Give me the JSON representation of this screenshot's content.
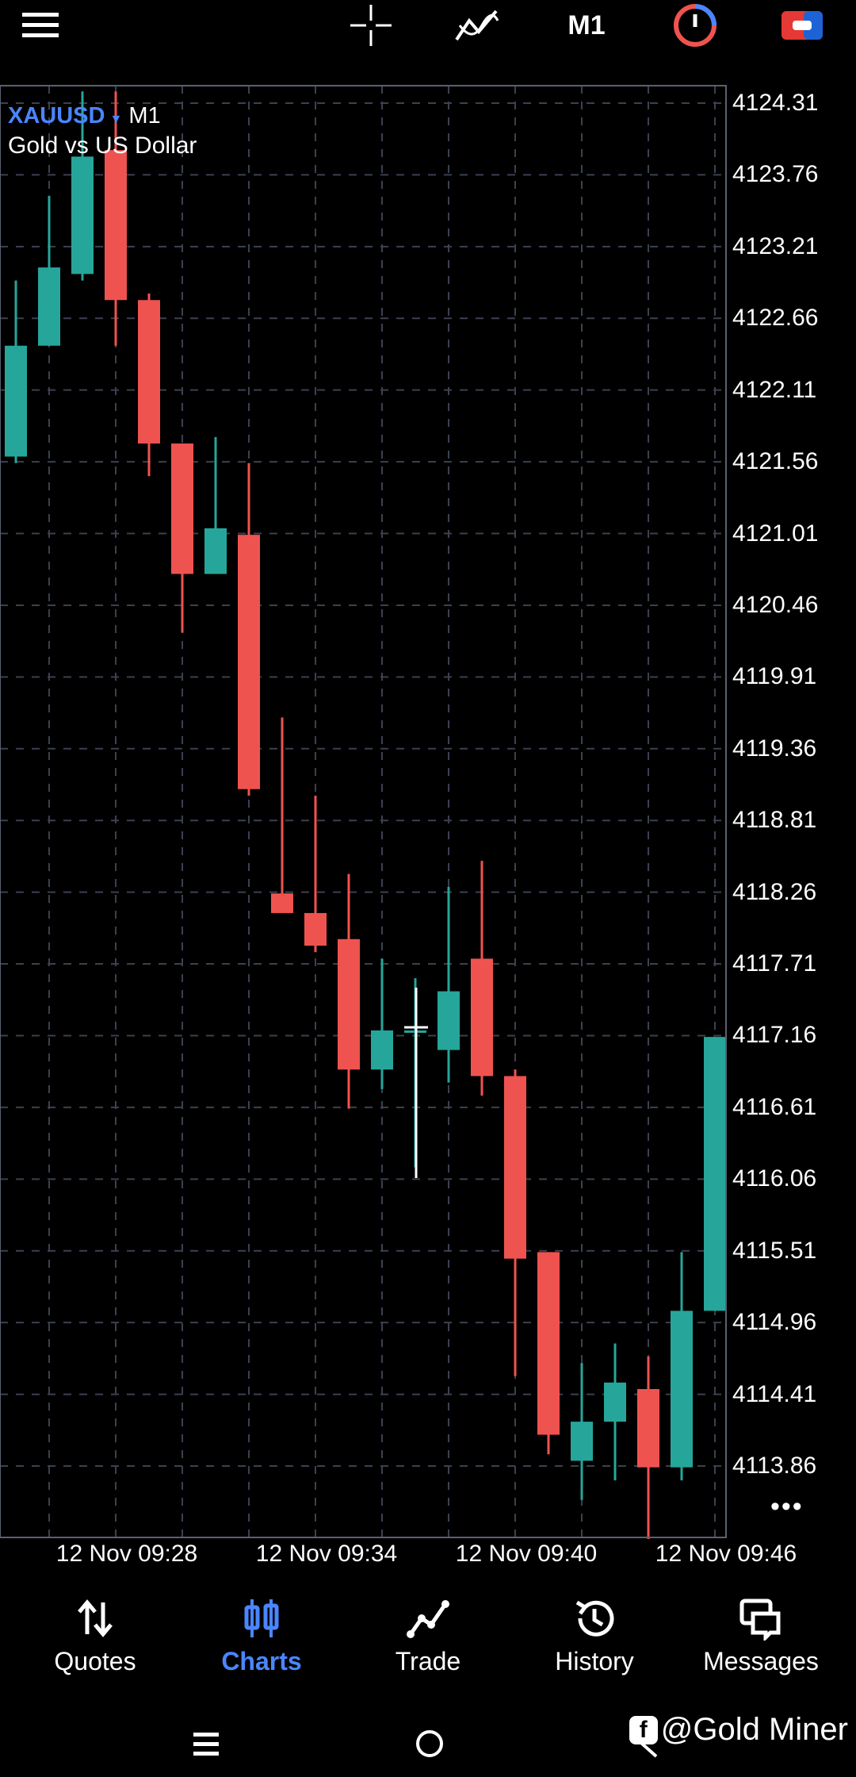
{
  "topbar": {
    "timeframe": "M1",
    "icons": [
      "menu-icon",
      "crosshair-icon",
      "indicators-icon",
      "clock-icon",
      "trade-toggle-icon"
    ]
  },
  "symbol": {
    "name": "XAUUSD",
    "timeframe": "M1",
    "description": "Gold vs US Dollar"
  },
  "colors": {
    "bull": "#26a69a",
    "bear": "#ef5350",
    "grid": "#3b4150",
    "accent": "#4a86ff"
  },
  "chart_data": {
    "type": "candlestick",
    "price_ticks": [
      "4124.31",
      "4123.76",
      "4123.21",
      "4122.66",
      "4122.11",
      "4121.56",
      "4121.01",
      "4120.46",
      "4119.91",
      "4119.36",
      "4118.81",
      "4118.26",
      "4117.71",
      "4117.16",
      "4116.61",
      "4116.06",
      "4115.51",
      "4114.96",
      "4114.41",
      "4113.86"
    ],
    "time_labels": [
      "12 Nov 09:28",
      "12 Nov 09:34",
      "12 Nov 09:40",
      "12 Nov 09:46"
    ],
    "ylim": [
      4113.86,
      4124.31
    ],
    "candles": [
      {
        "o": 4121.6,
        "h": 4122.95,
        "l": 4121.55,
        "c": 4122.45
      },
      {
        "o": 4122.45,
        "h": 4123.6,
        "l": 4122.45,
        "c": 4123.05
      },
      {
        "o": 4123.0,
        "h": 4124.4,
        "l": 4122.95,
        "c": 4123.9
      },
      {
        "o": 4123.95,
        "h": 4124.4,
        "l": 4122.45,
        "c": 4122.8
      },
      {
        "o": 4122.8,
        "h": 4122.85,
        "l": 4121.45,
        "c": 4121.7
      },
      {
        "o": 4121.7,
        "h": 4121.7,
        "l": 4120.25,
        "c": 4120.7
      },
      {
        "o": 4120.7,
        "h": 4121.75,
        "l": 4120.7,
        "c": 4121.05
      },
      {
        "o": 4121.0,
        "h": 4121.55,
        "l": 4119.0,
        "c": 4119.05
      },
      {
        "o": 4118.25,
        "h": 4119.6,
        "l": 4118.1,
        "c": 4118.1
      },
      {
        "o": 4118.1,
        "h": 4119.0,
        "l": 4117.8,
        "c": 4117.85
      },
      {
        "o": 4117.9,
        "h": 4118.4,
        "l": 4116.6,
        "c": 4116.9
      },
      {
        "o": 4116.9,
        "h": 4117.75,
        "l": 4116.75,
        "c": 4117.2
      },
      {
        "o": 4117.2,
        "h": 4117.6,
        "l": 4116.15,
        "c": 4117.2
      },
      {
        "o": 4117.05,
        "h": 4118.3,
        "l": 4116.8,
        "c": 4117.5
      },
      {
        "o": 4117.75,
        "h": 4118.5,
        "l": 4116.7,
        "c": 4116.85
      },
      {
        "o": 4116.85,
        "h": 4116.9,
        "l": 4114.55,
        "c": 4115.45
      },
      {
        "o": 4115.5,
        "h": 4115.5,
        "l": 4113.95,
        "c": 4114.1
      },
      {
        "o": 4113.9,
        "h": 4114.65,
        "l": 4113.6,
        "c": 4114.2
      },
      {
        "o": 4114.2,
        "h": 4114.8,
        "l": 4113.75,
        "c": 4114.5
      },
      {
        "o": 4114.45,
        "h": 4114.7,
        "l": 4113.3,
        "c": 4113.85
      },
      {
        "o": 4113.85,
        "h": 4115.5,
        "l": 4113.75,
        "c": 4115.05
      },
      {
        "o": 4115.05,
        "h": 4117.15,
        "l": 4115.05,
        "c": 4117.15
      }
    ]
  },
  "more_label": "•••",
  "nav": {
    "quotes": "Quotes",
    "charts": "Charts",
    "trade": "Trade",
    "history": "History",
    "messages": "Messages"
  },
  "watermark": "@Gold Miner",
  "watermark_icon": "f"
}
